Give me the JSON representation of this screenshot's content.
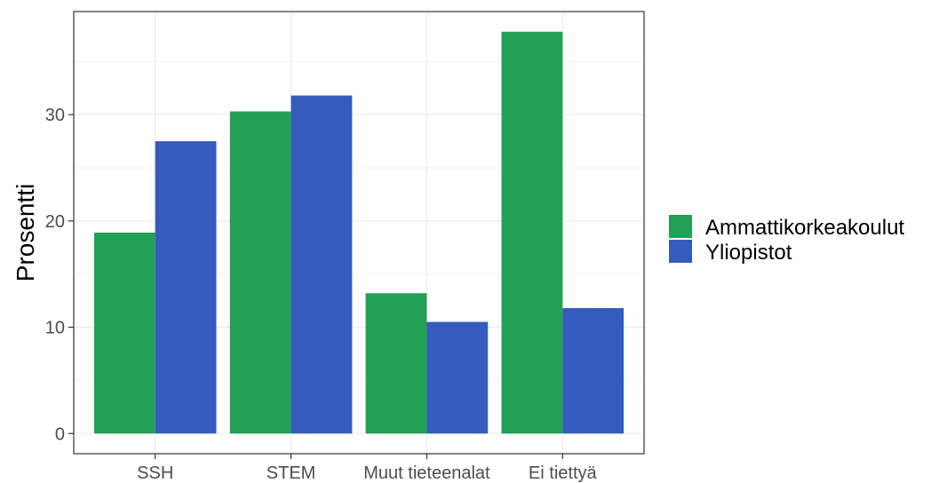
{
  "chart_data": {
    "type": "bar",
    "title": "",
    "xlabel": "",
    "ylabel": "Prosentti",
    "categories": [
      "SSH",
      "STEM",
      "Muut tieteenalat",
      "Ei tiettyä"
    ],
    "series": [
      {
        "name": "Ammattikorkeakoulut",
        "color": "#22a055",
        "values": [
          18.9,
          30.3,
          13.2,
          37.8
        ]
      },
      {
        "name": "Yliopistot",
        "color": "#365bbf",
        "values": [
          27.5,
          31.8,
          10.5,
          11.8
        ]
      }
    ],
    "ylim": [
      -1.9,
      39.7
    ],
    "yticks": [
      0,
      10,
      20,
      30
    ],
    "grid": true,
    "legend": "right"
  }
}
